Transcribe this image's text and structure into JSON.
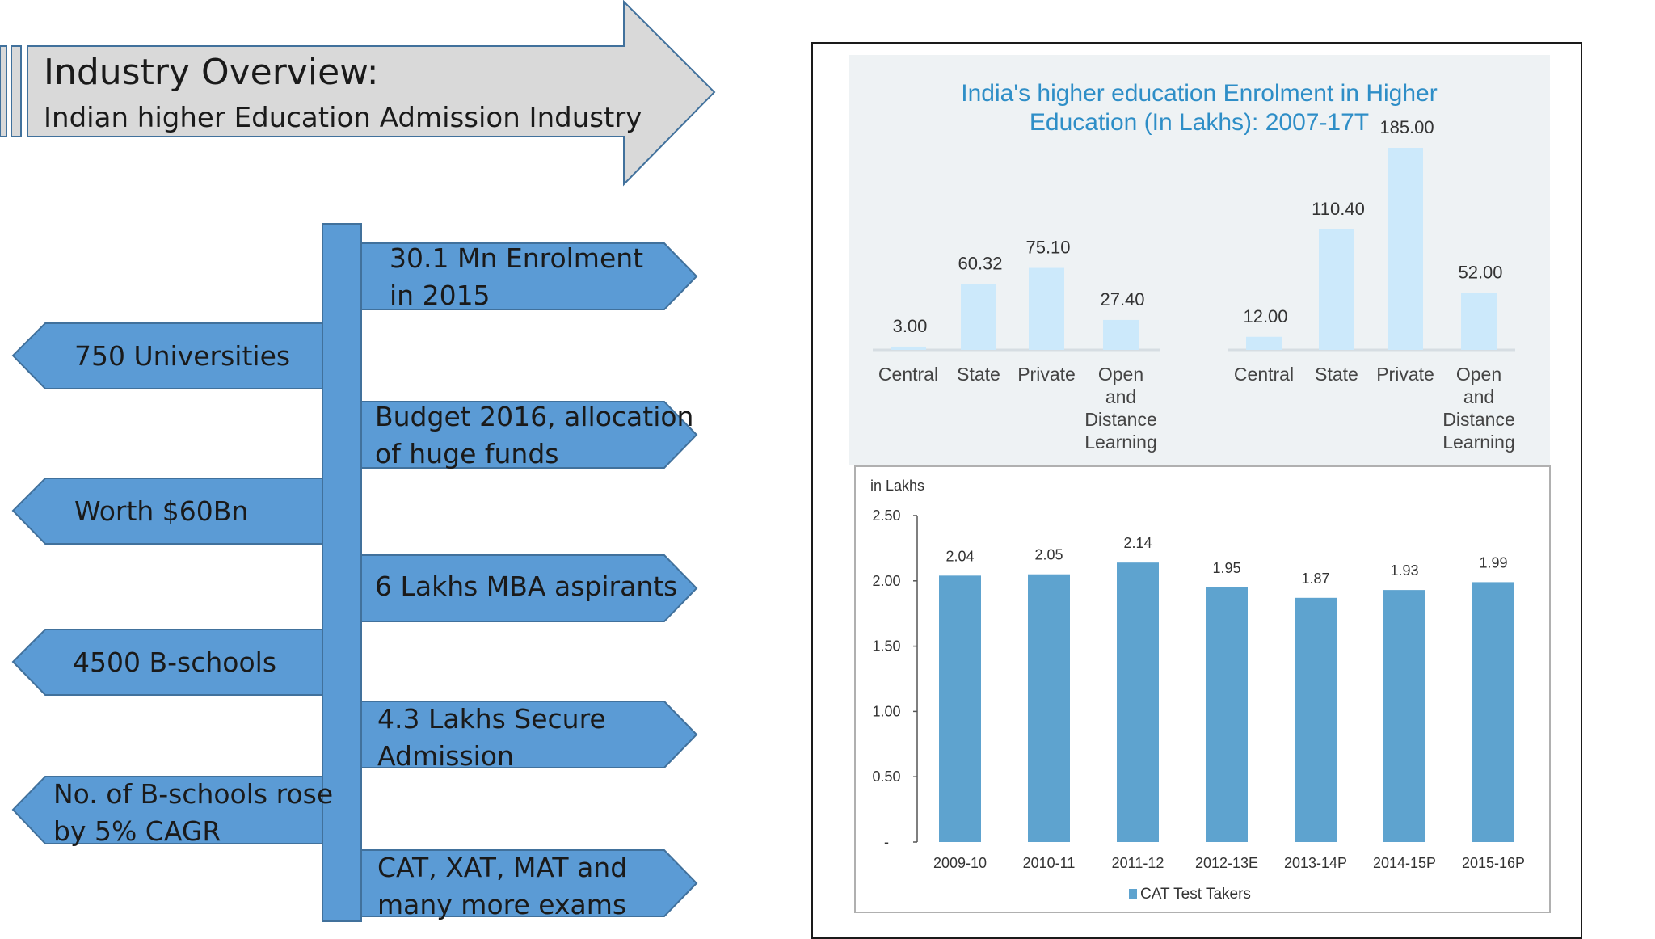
{
  "header": {
    "title": "Industry Overview:",
    "subtitle": "Indian higher Education Admission Industry"
  },
  "flow": {
    "right_items": [
      "30.1 Mn Enrolment\nin 2015",
      "Budget 2016, allocation\nof huge funds",
      "6 Lakhs MBA aspirants",
      "4.3 Lakhs Secure\nAdmission",
      "CAT, XAT, MAT and\nmany more exams"
    ],
    "left_items": [
      "750 Universities",
      "Worth $60Bn",
      "4500 B-schools",
      "No. of B-schools rose\nby 5% CAGR"
    ]
  },
  "colors": {
    "flow_fill": "#5b9bd5",
    "flow_stroke": "#41719c",
    "header_fill": "#d9d9d9",
    "header_stroke": "#41719c",
    "chart1_bar": "#cce9fb",
    "chart1_title": "#2e8ec7",
    "chart2_bar": "#5ea3cf"
  },
  "chart_data": [
    {
      "type": "bar",
      "title": "India's higher education Enrolment in Higher\nEducation (In Lakhs): 2007-17T",
      "groups": [
        {
          "categories": [
            "Central",
            "State",
            "Private",
            "Open\nand\nDistance\nLearning"
          ],
          "values": [
            3.0,
            60.32,
            75.1,
            27.4
          ]
        },
        {
          "categories": [
            "Central",
            "State",
            "Private",
            "Open\nand\nDistance\nLearning"
          ],
          "values": [
            12.0,
            110.4,
            185.0,
            52.0
          ]
        }
      ],
      "value_labels": [
        "3.00",
        "60.32",
        "75.10",
        "27.40",
        "12.00",
        "110.40",
        "185.00",
        "52.00"
      ],
      "ylim": [
        0,
        185
      ]
    },
    {
      "type": "bar",
      "ylabel": "in Lakhs",
      "categories": [
        "2009-10",
        "2010-11",
        "2011-12",
        "2012-13E",
        "2013-14P",
        "2014-15P",
        "2015-16P"
      ],
      "series": [
        {
          "name": "CAT Test Takers",
          "values": [
            2.04,
            2.05,
            2.14,
            1.95,
            1.87,
            1.93,
            1.99
          ]
        }
      ],
      "value_labels": [
        "2.04",
        "2.05",
        "2.14",
        "1.95",
        "1.87",
        "1.93",
        "1.99"
      ],
      "ylim": [
        0,
        2.5
      ],
      "yticks": [
        "-",
        "0.50",
        "1.00",
        "1.50",
        "2.00",
        "2.50"
      ],
      "legend": "bottom-center"
    }
  ]
}
